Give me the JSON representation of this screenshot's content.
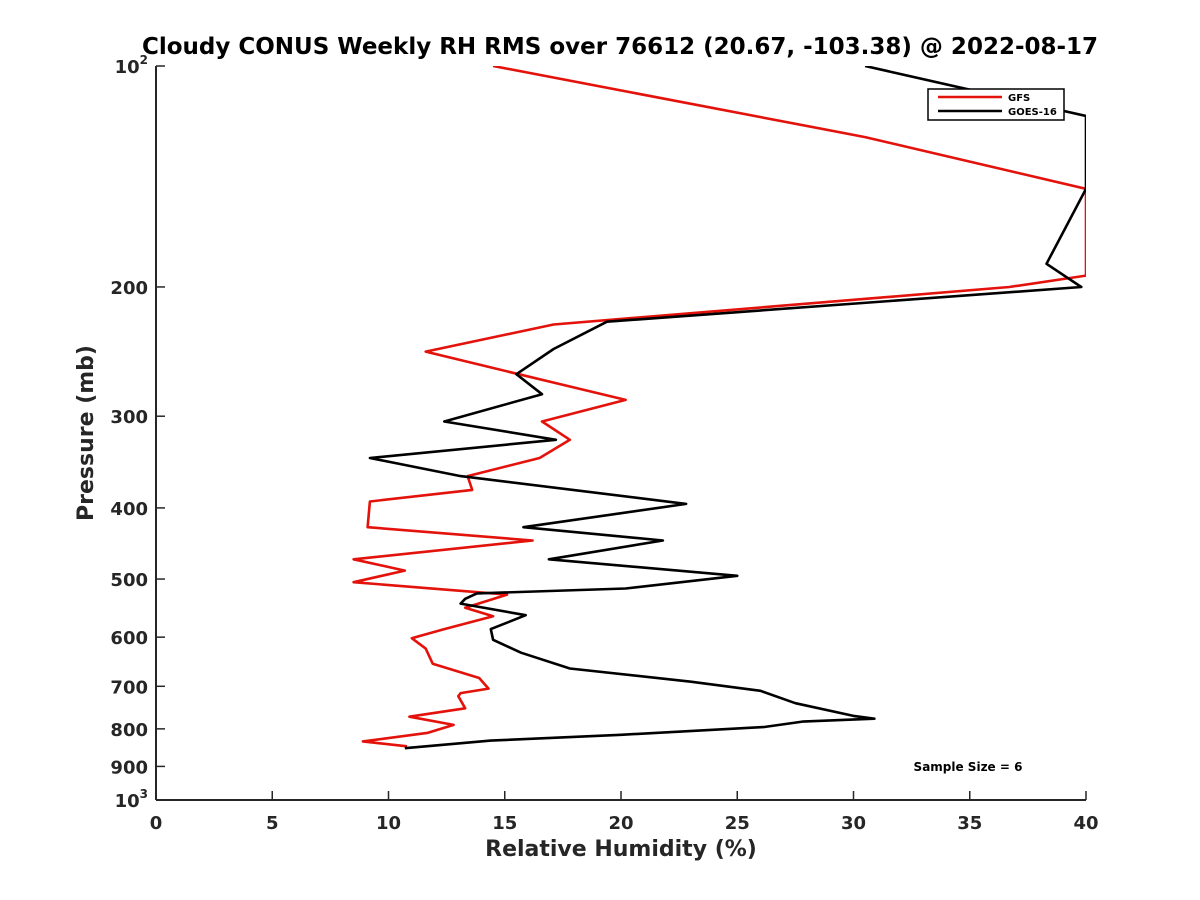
{
  "chart_data": {
    "type": "line",
    "title": "Cloudy CONUS Weekly RH RMS over 76612 (20.67, -103.38) @ 2022-08-17",
    "xlabel": "Relative Humidity (%)",
    "ylabel": "Pressure (mb)",
    "xlim": [
      0,
      40
    ],
    "ylim": [
      100,
      1000
    ],
    "yscale": "log",
    "y_reversed": true,
    "x_ticks": [
      0,
      5,
      10,
      15,
      20,
      25,
      30,
      35,
      40
    ],
    "x_tick_labels": [
      "0",
      "5",
      "10",
      "15",
      "20",
      "25",
      "30",
      "35",
      "40"
    ],
    "y_ticks": [
      100,
      200,
      300,
      400,
      500,
      600,
      700,
      800,
      900,
      1000
    ],
    "y_tick_labels": [
      {
        "text": "10",
        "sup": "2"
      },
      {
        "text": "200"
      },
      {
        "text": "300"
      },
      {
        "text": "400"
      },
      {
        "text": "500"
      },
      {
        "text": "600"
      },
      {
        "text": "700"
      },
      {
        "text": "800"
      },
      {
        "text": "900"
      },
      {
        "text": "10",
        "sup": "3"
      }
    ],
    "legend": {
      "position": "top-right"
    },
    "annotation": "Sample Size = 6",
    "series": [
      {
        "name": "GFS",
        "color": "#e3120b",
        "x": [
          14.5,
          30.5,
          40.0,
          40.0,
          36.7,
          17.1,
          11.6,
          15.6,
          20.2,
          16.6,
          17.8,
          16.5,
          13.4,
          13.6,
          9.2,
          9.1,
          16.2,
          8.5,
          10.7,
          8.5,
          15.1,
          13.3,
          14.5,
          12.4,
          11.0,
          11.6,
          11.9,
          13.9,
          14.3,
          13.1,
          13.0,
          13.3,
          10.9,
          12.8,
          11.7,
          8.9,
          10.8
        ],
        "y": [
          100,
          125,
          147,
          193,
          200,
          225,
          245,
          263,
          285,
          305,
          323,
          342,
          362,
          378,
          392,
          425,
          443,
          470,
          487,
          505,
          525,
          547,
          562,
          585,
          602,
          622,
          652,
          682,
          705,
          715,
          722,
          750,
          770,
          790,
          810,
          832,
          845
        ]
      },
      {
        "name": "GOES-16",
        "color": "#000000",
        "x": [
          30.5,
          40.0,
          40.0,
          38.3,
          39.8,
          19.4,
          17.1,
          15.5,
          16.6,
          12.4,
          17.2,
          9.2,
          13.1,
          22.8,
          15.8,
          21.8,
          16.9,
          25.0,
          20.2,
          13.8,
          13.3,
          13.1,
          15.9,
          14.4,
          14.5,
          15.7,
          17.8,
          23.0,
          26.0,
          27.5,
          30.0,
          30.9,
          27.8,
          26.2,
          20.0,
          14.4,
          10.7
        ],
        "y": [
          100,
          117,
          147,
          186,
          200,
          223,
          243,
          263,
          280,
          305,
          323,
          342,
          362,
          395,
          425,
          443,
          470,
          495,
          515,
          523,
          532,
          540,
          560,
          585,
          605,
          630,
          662,
          690,
          710,
          738,
          768,
          775,
          782,
          795,
          815,
          830,
          850
        ]
      }
    ]
  }
}
